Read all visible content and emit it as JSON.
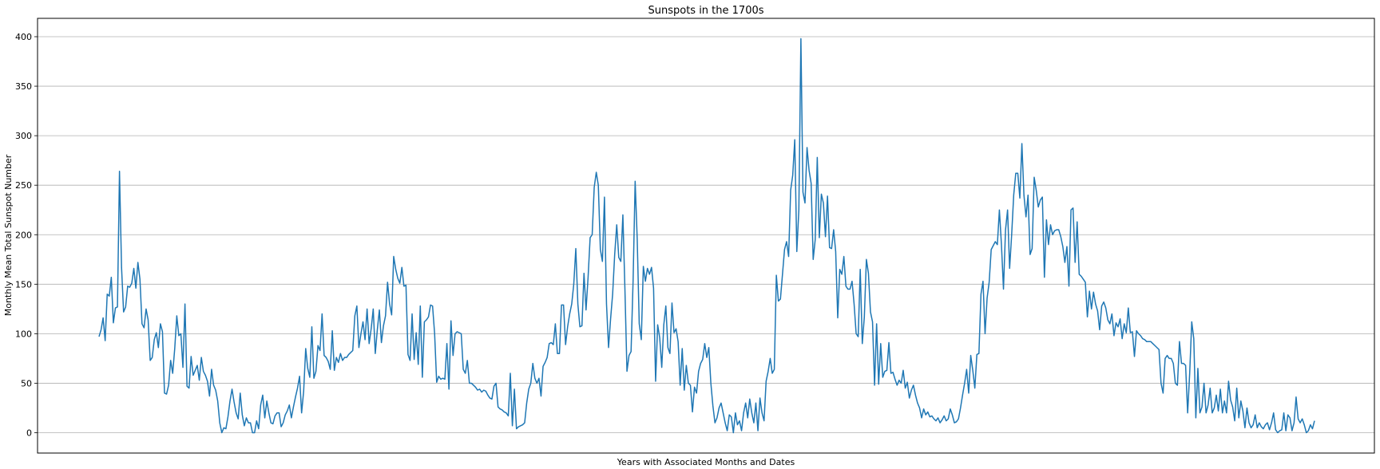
{
  "chart_data": {
    "type": "line",
    "title": "Sunspots in the 1700s",
    "xlabel": "Years with Associated Months and Dates",
    "ylabel": "Monthly Mean Total Sunspot Number",
    "ylim": [
      -20,
      420
    ],
    "yticks": [
      0,
      50,
      100,
      150,
      200,
      250,
      300,
      350,
      400
    ],
    "grid": "y",
    "x_tick_labels_shown": false,
    "line_color": "#1f77b4",
    "series": [
      {
        "values": [
          97,
          104,
          116,
          93,
          140,
          138,
          157,
          111,
          126,
          127,
          264,
          167,
          122,
          127,
          148,
          147,
          151,
          166,
          146,
          172,
          155,
          110,
          106,
          125,
          114,
          73,
          76,
          94,
          101,
          86,
          110,
          102,
          40,
          39,
          48,
          73,
          60,
          85,
          118,
          98,
          100,
          66,
          130,
          47,
          45,
          77,
          58,
          63,
          68,
          53,
          76,
          62,
          58,
          52,
          37,
          64,
          48,
          43,
          32,
          10,
          0,
          5,
          4,
          16,
          32,
          44,
          31,
          20,
          14,
          40,
          18,
          7,
          15,
          10,
          10,
          0,
          0,
          12,
          4,
          28,
          38,
          15,
          32,
          20,
          10,
          9,
          17,
          20,
          20,
          6,
          10,
          18,
          22,
          28,
          15,
          26,
          36,
          45,
          57,
          20,
          42,
          85,
          65,
          56,
          107,
          55,
          62,
          88,
          83,
          120,
          78,
          76,
          72,
          64,
          103,
          63,
          76,
          71,
          80,
          73,
          76,
          76,
          79,
          81,
          83,
          118,
          128,
          86,
          100,
          112,
          94,
          125,
          90,
          105,
          125,
          80,
          104,
          124,
          91,
          108,
          118,
          152,
          130,
          119,
          178,
          165,
          156,
          151,
          167,
          148,
          149,
          79,
          73,
          120,
          74,
          101,
          69,
          128,
          56,
          112,
          114,
          117,
          129,
          128,
          100,
          51,
          57,
          54,
          55,
          54,
          90,
          44,
          113,
          78,
          100,
          102,
          101,
          100,
          64,
          60,
          73,
          50,
          50,
          48,
          46,
          43,
          44,
          41,
          43,
          42,
          38,
          35,
          34,
          47,
          50,
          26,
          24,
          23,
          21,
          20,
          17,
          60,
          7,
          44,
          4,
          6,
          7,
          8,
          10,
          30,
          44,
          50,
          70,
          55,
          50,
          55,
          37,
          67,
          71,
          76,
          90,
          91,
          89,
          110,
          80,
          80,
          129,
          129,
          89,
          107,
          120,
          130,
          150,
          186,
          130,
          107,
          108,
          161,
          124,
          157,
          197,
          200,
          248,
          263,
          250,
          185,
          173,
          238,
          130,
          86,
          115,
          140,
          180,
          210,
          177,
          173,
          220,
          145,
          62,
          78,
          82,
          154,
          254,
          196,
          110,
          94,
          168,
          153,
          166,
          160,
          167,
          146,
          52,
          109,
          96,
          66,
          109,
          128,
          86,
          80,
          131,
          101,
          105,
          92,
          48,
          85,
          43,
          68,
          50,
          48,
          21,
          46,
          40,
          62,
          70,
          74,
          90,
          76,
          86,
          50,
          27,
          10,
          15,
          25,
          30,
          20,
          10,
          2,
          18,
          16,
          0,
          20,
          8,
          12,
          2,
          20,
          30,
          15,
          34,
          20,
          10,
          30,
          2,
          35,
          20,
          12,
          52,
          62,
          75,
          60,
          64,
          159,
          133,
          135,
          160,
          185,
          193,
          178,
          245,
          260,
          296,
          183,
          225,
          398,
          243,
          232,
          288,
          265,
          252,
          175,
          195,
          278,
          197,
          241,
          232,
          198,
          239,
          187,
          186,
          205,
          183,
          116,
          165,
          160,
          178,
          148,
          145,
          145,
          153,
          130,
          100,
          97,
          165,
          90,
          117,
          175,
          161,
          122,
          112,
          48,
          110,
          49,
          90,
          56,
          62,
          63,
          91,
          60,
          61,
          54,
          48,
          53,
          50,
          63,
          45,
          51,
          35,
          43,
          48,
          38,
          30,
          25,
          15,
          24,
          18,
          21,
          16,
          17,
          14,
          12,
          15,
          10,
          13,
          17,
          12,
          14,
          24,
          18,
          10,
          11,
          14,
          25,
          38,
          50,
          64,
          40,
          78,
          63,
          45,
          79,
          80,
          140,
          153,
          100,
          136,
          152,
          185,
          189,
          193,
          190,
          225,
          190,
          145,
          205,
          225,
          166,
          200,
          240,
          262,
          262,
          237,
          292,
          240,
          218,
          240,
          180,
          186,
          258,
          245,
          228,
          235,
          238,
          157,
          215,
          190,
          210,
          200,
          204,
          205,
          205,
          198,
          188,
          172,
          188,
          148,
          225,
          227,
          172,
          213,
          160,
          158,
          155,
          152,
          117,
          143,
          125,
          142,
          130,
          123,
          104,
          128,
          132,
          126,
          114,
          110,
          120,
          98,
          111,
          107,
          115,
          95,
          110,
          101,
          126,
          101,
          102,
          77,
          103,
          100,
          98,
          95,
          94,
          92,
          92,
          92,
          90,
          88,
          86,
          84,
          50,
          40,
          75,
          78,
          75,
          75,
          70,
          50,
          48,
          92,
          70,
          70,
          68,
          20,
          60,
          112,
          95,
          15,
          65,
          20,
          26,
          50,
          20,
          28,
          45,
          20,
          25,
          38,
          22,
          44,
          20,
          32,
          20,
          52,
          33,
          26,
          12,
          45,
          15,
          32,
          22,
          5,
          25,
          10,
          5,
          8,
          18,
          5,
          10,
          6,
          4,
          8,
          10,
          3,
          10,
          20,
          3,
          0,
          2,
          3,
          20,
          2,
          18,
          15,
          2,
          10,
          36,
          14,
          10,
          14,
          8,
          0,
          2,
          8,
          4,
          12
        ]
      }
    ]
  }
}
